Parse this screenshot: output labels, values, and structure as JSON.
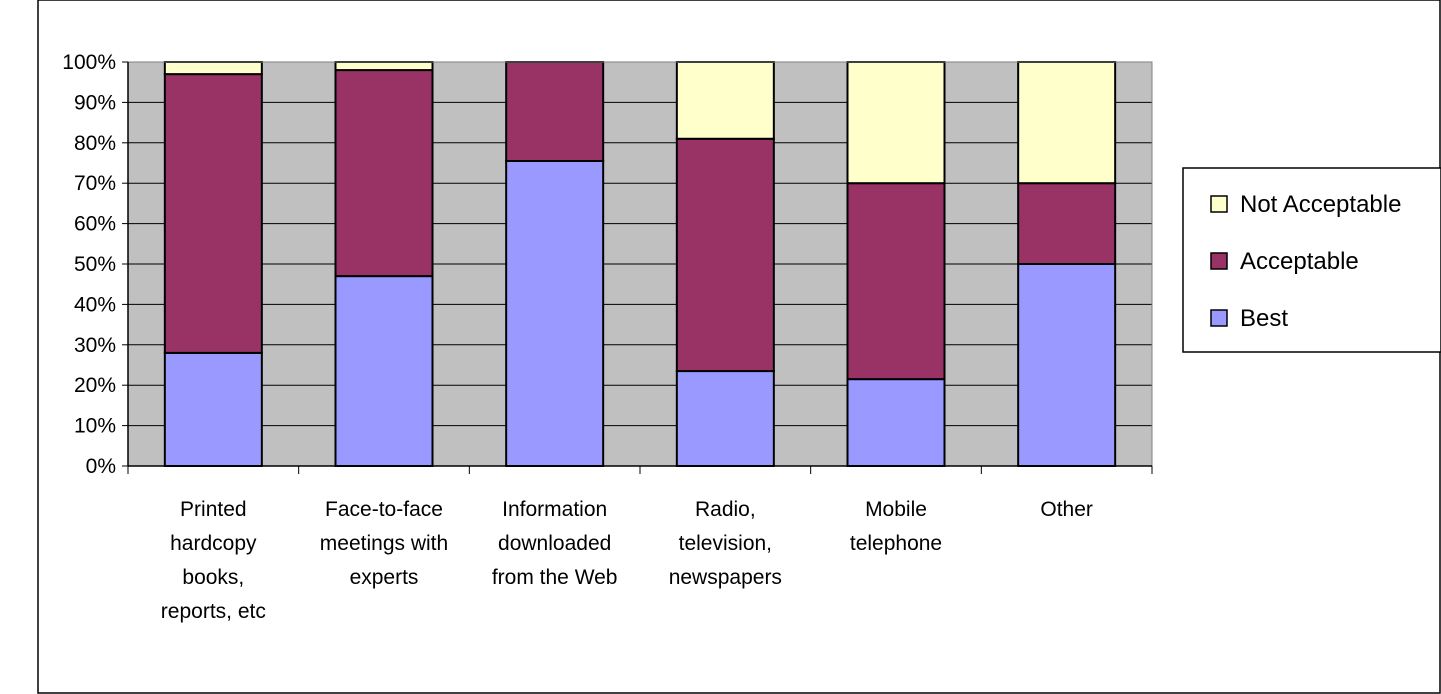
{
  "chart_data": {
    "type": "bar",
    "stacked": true,
    "percent_stacked": true,
    "title": "",
    "xlabel": "",
    "ylabel": "",
    "ylim": [
      0,
      100
    ],
    "y_tick_labels": [
      "0%",
      "10%",
      "20%",
      "30%",
      "40%",
      "50%",
      "60%",
      "70%",
      "80%",
      "90%",
      "100%"
    ],
    "grid": true,
    "legend_position": "right",
    "categories": [
      [
        "Printed",
        "hardcopy",
        "books,",
        "reports, etc"
      ],
      [
        "Face-to-face",
        "meetings with",
        "experts"
      ],
      [
        "Information",
        "downloaded",
        "from the Web"
      ],
      [
        "Radio,",
        "television,",
        "newspapers"
      ],
      [
        "Mobile",
        "telephone"
      ],
      [
        "Other"
      ]
    ],
    "series": [
      {
        "name": "Best",
        "color": "#9999ff",
        "values": [
          28,
          47,
          75.5,
          23.5,
          21.5,
          50
        ]
      },
      {
        "name": "Acceptable",
        "color": "#993366",
        "values": [
          69,
          51,
          24.5,
          57.5,
          48.5,
          20
        ]
      },
      {
        "name": "Not Acceptable",
        "color": "#ffffcc",
        "values": [
          3,
          2,
          0,
          19,
          30,
          30
        ]
      }
    ],
    "legend_order": [
      "Not Acceptable",
      "Acceptable",
      "Best"
    ],
    "plot_background": "#c0c0c0"
  }
}
